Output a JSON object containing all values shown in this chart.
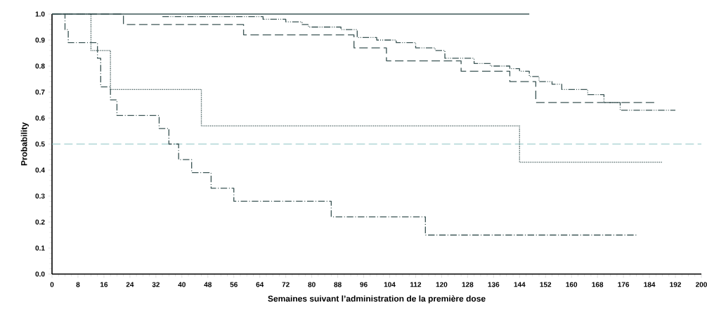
{
  "chart_data": {
    "type": "step",
    "xlabel": "Semaines suivant l’administration de la première dose",
    "ylabel": "Probability",
    "xlim": [
      0,
      200
    ],
    "ylim": [
      0,
      1
    ],
    "xticks": [
      0,
      8,
      16,
      24,
      32,
      40,
      48,
      56,
      64,
      72,
      80,
      88,
      96,
      104,
      112,
      120,
      128,
      136,
      144,
      152,
      160,
      168,
      176,
      184,
      192,
      200
    ],
    "yticks": [
      {
        "value": 0,
        "label": "0.0"
      },
      {
        "value": 0.1,
        "label": "0.1"
      },
      {
        "value": 0.2,
        "label": "0.2"
      },
      {
        "value": 0.3,
        "label": "0.3"
      },
      {
        "value": 0.4,
        "label": "0.4"
      },
      {
        "value": 0.5,
        "label": "0.5"
      },
      {
        "value": 0.6,
        "label": "0.6"
      },
      {
        "value": 0.7,
        "label": "0.7"
      },
      {
        "value": 0.8,
        "label": "0.8"
      },
      {
        "value": 0.9,
        "label": "0.9"
      },
      {
        "value": 1,
        "label": "1.0"
      }
    ],
    "series": [
      {
        "color": "#3d5656",
        "line_style": "solid",
        "x": [
          0,
          147
        ],
        "values": [
          1,
          1
        ]
      },
      {
        "color": "#3d5656",
        "line_style": "dashed",
        "x": [
          0,
          22,
          59,
          93,
          103,
          126,
          141,
          149,
          186
        ],
        "values": [
          1,
          0.96,
          0.92,
          0.87,
          0.82,
          0.78,
          0.74,
          0.66,
          0.66
        ]
      },
      {
        "color": "#3d5656",
        "line_style": "dashdotdot",
        "x": [
          34,
          65,
          72,
          77,
          79,
          89,
          94,
          100,
          106,
          112,
          118,
          121,
          130,
          135,
          141,
          144,
          147,
          150,
          154,
          157,
          165,
          170,
          175,
          192
        ],
        "values": [
          0.99,
          0.98,
          0.97,
          0.96,
          0.95,
          0.94,
          0.91,
          0.9,
          0.89,
          0.87,
          0.86,
          0.83,
          0.81,
          0.8,
          0.79,
          0.78,
          0.76,
          0.74,
          0.73,
          0.71,
          0.69,
          0.66,
          0.63,
          0.63
        ]
      },
      {
        "color": "#3d5656",
        "line_style": "dotted",
        "x": [
          0,
          12,
          18,
          46,
          144,
          188
        ],
        "values": [
          1,
          0.86,
          0.71,
          0.57,
          0.43,
          0.43
        ]
      },
      {
        "color": "#3d5656",
        "line_style": "dashdot",
        "x": [
          0,
          4,
          5,
          14,
          15,
          18,
          20,
          33,
          36,
          39,
          43,
          49,
          56,
          86,
          115,
          180
        ],
        "values": [
          1,
          0.94,
          0.89,
          0.83,
          0.72,
          0.67,
          0.61,
          0.56,
          0.5,
          0.44,
          0.39,
          0.33,
          0.28,
          0.22,
          0.15,
          0.15
        ]
      }
    ],
    "ref_lines": [
      {
        "axis": "y",
        "value": 0.5,
        "color": "#8cc4c4",
        "line_style": "dashed"
      }
    ],
    "grid": false
  }
}
